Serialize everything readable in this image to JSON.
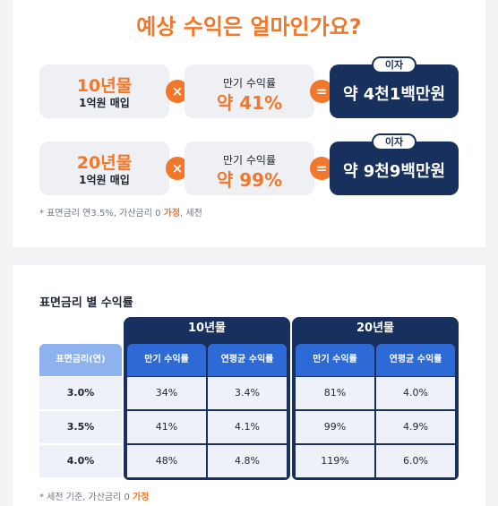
{
  "hero": {
    "title": "예상 수익은 얼마인가요?",
    "times_symbol": "×",
    "equals_symbol": "=",
    "rows": [
      {
        "bond_years": "10년물",
        "purchase": "1억원 매입",
        "yield_label": "만기 수익률",
        "yield_value": "약 41%",
        "interest_tag": "이자",
        "interest_value": "약 4천1백만원"
      },
      {
        "bond_years": "20년물",
        "purchase": "1억원 매입",
        "yield_label": "만기 수익률",
        "yield_value": "약 99%",
        "interest_tag": "이자",
        "interest_value": "약 9천9백만원"
      }
    ],
    "note_prefix": "* 표면금리 연3.5%, 가산금리 0 ",
    "note_highlight": "가정",
    "note_suffix": ", 세전"
  },
  "table": {
    "title": "표면금리 별 수익률",
    "groups": [
      "10년물",
      "20년물"
    ],
    "rate_header": "표면금리(연)",
    "col_headers": [
      "만기 수익률",
      "연평균 수익률",
      "만기 수익률",
      "연평균 수익률"
    ],
    "rows": [
      {
        "rate": "3.0%",
        "cells": [
          "34%",
          "3.4%",
          "81%",
          "4.0%"
        ]
      },
      {
        "rate": "3.5%",
        "cells": [
          "41%",
          "4.1%",
          "99%",
          "4.9%"
        ]
      },
      {
        "rate": "4.0%",
        "cells": [
          "48%",
          "4.8%",
          "119%",
          "6.0%"
        ]
      }
    ],
    "note_prefix": "* 세전 기준, 가산금리 0 ",
    "note_highlight": "가정"
  },
  "colors": {
    "accent_orange": "#f2772b",
    "navy": "#17305e",
    "header_blue": "#2d6ad6",
    "header_light_blue": "#8db2ee",
    "cell_bg": "#eef2f8"
  }
}
